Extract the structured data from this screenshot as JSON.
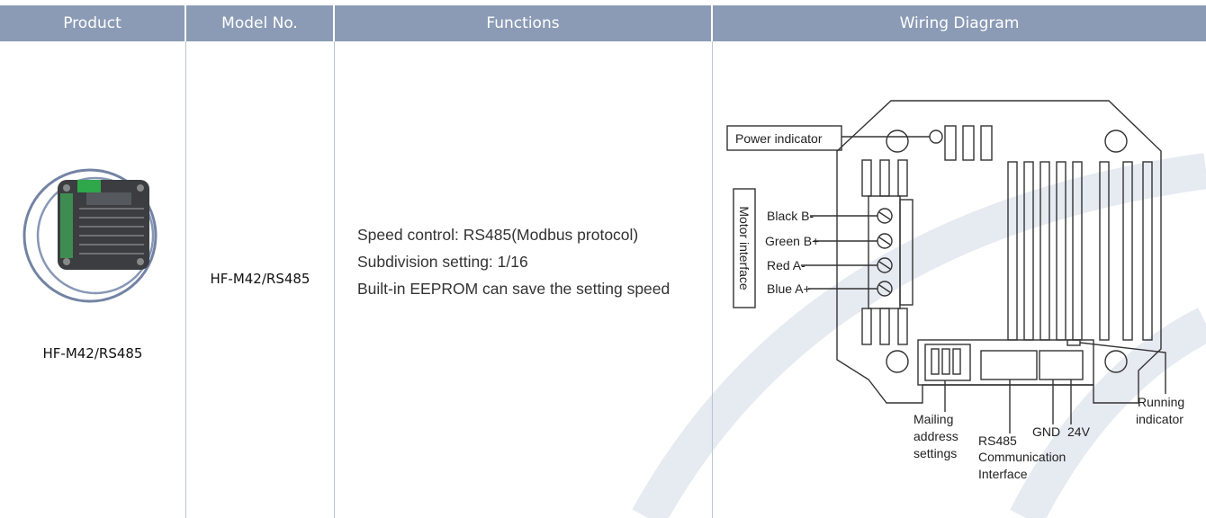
{
  "table": {
    "headers": [
      "Product",
      "Model No.",
      "Functions",
      "Wiring Diagram"
    ],
    "rows": [
      {
        "product": "HF-M42/RS485",
        "model": "HF-M42/RS485",
        "functions": [
          "Speed control: RS485(Modbus protocol)",
          "Subdivision setting: 1/16",
          "Built-in EEPROM can save the setting speed"
        ],
        "diagram": {
          "power_indicator": "Power indicator",
          "motor_interface": "Motor interface",
          "wires": [
            "Black B-",
            "Green B+",
            "Red A-",
            "Blue A+"
          ],
          "mailing": [
            "Mailing",
            "address",
            "settings"
          ],
          "rs485": [
            "RS485",
            "Communication",
            "Interface"
          ],
          "gnd": "GND",
          "v24": "24V",
          "running": [
            "Running",
            "indicator"
          ]
        }
      }
    ]
  }
}
